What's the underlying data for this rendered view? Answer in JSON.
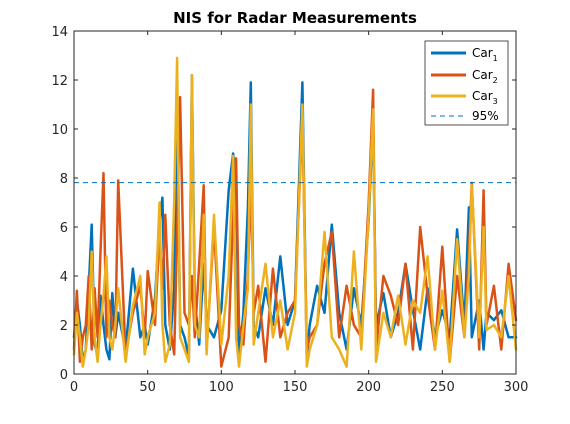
{
  "chart_data": {
    "type": "line",
    "title": "NIS for Radar Measurements",
    "xlabel": "",
    "ylabel": "",
    "xlim": [
      0,
      300
    ],
    "ylim": [
      0,
      14
    ],
    "xticks": [
      0,
      50,
      100,
      150,
      200,
      250,
      300
    ],
    "yticks": [
      0,
      2,
      4,
      6,
      8,
      10,
      12,
      14
    ],
    "xtick_labels": [
      "0",
      "50",
      "100",
      "150",
      "200",
      "250",
      "300"
    ],
    "ytick_labels": [
      "0",
      "2",
      "4",
      "6",
      "8",
      "10",
      "12",
      "14"
    ],
    "grid": false,
    "legend_position": "top-right",
    "reference_lines": [
      {
        "label": "95%",
        "y": 7.81,
        "color": "#0072BD",
        "style": "dashed"
      }
    ],
    "series": [
      {
        "name": "Car",
        "subscript": "1",
        "color": "#0072BD",
        "x": [
          0,
          2,
          4,
          6,
          8,
          10,
          12,
          14,
          16,
          18,
          20,
          22,
          24,
          26,
          28,
          30,
          35,
          40,
          45,
          48,
          50,
          55,
          58,
          60,
          62,
          65,
          68,
          70,
          72,
          75,
          78,
          80,
          82,
          85,
          88,
          90,
          95,
          100,
          105,
          108,
          110,
          112,
          115,
          118,
          120,
          122,
          125,
          130,
          135,
          140,
          145,
          150,
          155,
          158,
          160,
          165,
          170,
          175,
          180,
          185,
          190,
          195,
          200,
          203,
          205,
          210,
          215,
          220,
          225,
          230,
          235,
          240,
          245,
          250,
          255,
          260,
          265,
          268,
          270,
          275,
          278,
          280,
          285,
          290,
          295,
          300
        ],
        "y": [
          1.5,
          3.0,
          2.0,
          0.5,
          1.0,
          3.5,
          6.1,
          1.2,
          0.8,
          3.2,
          2.0,
          1.0,
          0.6,
          3.3,
          1.5,
          2.5,
          1.0,
          4.3,
          1.5,
          2.0,
          1.2,
          3.1,
          6.2,
          7.2,
          2.0,
          1.0,
          3.5,
          11.4,
          2.0,
          1.5,
          0.7,
          12.2,
          3.0,
          1.2,
          4.5,
          2.0,
          1.5,
          2.6,
          7.5,
          9.0,
          8.0,
          0.6,
          2.5,
          6.8,
          11.9,
          2.0,
          1.5,
          3.5,
          2.0,
          4.8,
          2.0,
          3.0,
          11.9,
          0.6,
          2.0,
          3.6,
          2.5,
          6.1,
          2.5,
          1.0,
          3.5,
          2.0,
          6.3,
          10.3,
          2.0,
          3.3,
          1.5,
          2.5,
          4.5,
          2.6,
          1.0,
          3.5,
          1.5,
          2.6,
          1.5,
          5.9,
          2.0,
          6.8,
          1.5,
          3.0,
          1.0,
          2.5,
          2.2,
          2.6,
          1.5,
          1.5
        ]
      },
      {
        "name": "Car",
        "subscript": "2",
        "color": "#D95319",
        "x": [
          0,
          2,
          4,
          6,
          8,
          10,
          12,
          14,
          16,
          18,
          20,
          22,
          24,
          26,
          28,
          30,
          35,
          40,
          45,
          48,
          50,
          55,
          58,
          60,
          62,
          65,
          68,
          70,
          72,
          75,
          78,
          80,
          82,
          85,
          88,
          90,
          95,
          100,
          105,
          108,
          110,
          112,
          115,
          118,
          120,
          122,
          125,
          130,
          135,
          140,
          145,
          150,
          155,
          158,
          160,
          165,
          170,
          175,
          180,
          185,
          190,
          195,
          200,
          203,
          205,
          210,
          215,
          220,
          225,
          230,
          235,
          240,
          245,
          250,
          255,
          260,
          265,
          268,
          270,
          275,
          278,
          280,
          285,
          290,
          295,
          300
        ],
        "y": [
          1.0,
          3.4,
          0.5,
          1.5,
          2.0,
          4.0,
          1.0,
          3.5,
          1.5,
          5.0,
          8.2,
          1.5,
          3.0,
          2.0,
          1.5,
          7.9,
          0.8,
          2.5,
          3.6,
          1.5,
          4.2,
          2.0,
          5.8,
          3.5,
          6.5,
          2.0,
          0.8,
          5.8,
          11.3,
          2.5,
          2.0,
          4.0,
          1.5,
          4.5,
          7.7,
          1.0,
          6.0,
          0.3,
          1.5,
          6.5,
          8.8,
          2.0,
          1.2,
          4.0,
          7.9,
          2.5,
          3.6,
          0.5,
          4.3,
          1.5,
          2.5,
          3.0,
          10.4,
          1.0,
          1.5,
          2.0,
          4.5,
          5.8,
          1.5,
          3.6,
          2.0,
          1.5,
          7.0,
          11.6,
          1.0,
          4.0,
          3.2,
          2.0,
          4.5,
          1.0,
          6.0,
          3.2,
          1.0,
          5.2,
          0.5,
          4.0,
          1.5,
          5.0,
          7.8,
          1.0,
          7.5,
          2.0,
          3.6,
          1.0,
          4.5,
          2.2
        ]
      },
      {
        "name": "Car",
        "subscript": "3",
        "color": "#EDB120",
        "x": [
          0,
          2,
          4,
          6,
          8,
          10,
          12,
          14,
          16,
          18,
          20,
          22,
          24,
          26,
          28,
          30,
          35,
          40,
          45,
          48,
          50,
          55,
          58,
          60,
          62,
          65,
          68,
          70,
          72,
          75,
          78,
          80,
          82,
          85,
          88,
          90,
          95,
          100,
          105,
          108,
          110,
          112,
          115,
          118,
          120,
          122,
          125,
          130,
          135,
          140,
          145,
          150,
          155,
          158,
          160,
          165,
          170,
          175,
          180,
          185,
          190,
          195,
          200,
          203,
          205,
          210,
          215,
          220,
          225,
          230,
          235,
          240,
          245,
          250,
          255,
          260,
          265,
          268,
          270,
          275,
          278,
          280,
          285,
          290,
          295,
          300
        ],
        "y": [
          0.8,
          2.5,
          1.5,
          0.3,
          1.0,
          2.0,
          5.0,
          1.5,
          0.5,
          2.0,
          3.2,
          4.8,
          1.5,
          1.0,
          2.0,
          3.5,
          0.5,
          2.8,
          4.0,
          0.8,
          1.5,
          2.5,
          7.0,
          2.0,
          0.5,
          1.2,
          7.1,
          12.9,
          1.5,
          1.0,
          0.5,
          12.2,
          2.0,
          1.5,
          6.5,
          0.8,
          6.5,
          1.2,
          4.0,
          8.9,
          1.5,
          0.3,
          2.0,
          3.5,
          11.0,
          1.2,
          2.5,
          4.5,
          1.5,
          3.0,
          1.0,
          2.5,
          11.0,
          0.3,
          1.0,
          2.0,
          5.8,
          1.5,
          1.0,
          0.3,
          5.0,
          1.0,
          6.5,
          10.8,
          0.5,
          2.5,
          1.5,
          3.2,
          1.2,
          3.0,
          2.5,
          4.8,
          1.0,
          3.4,
          0.5,
          5.5,
          1.5,
          4.0,
          7.7,
          1.5,
          6.0,
          1.8,
          2.0,
          1.5,
          4.0,
          1.0
        ]
      }
    ]
  }
}
